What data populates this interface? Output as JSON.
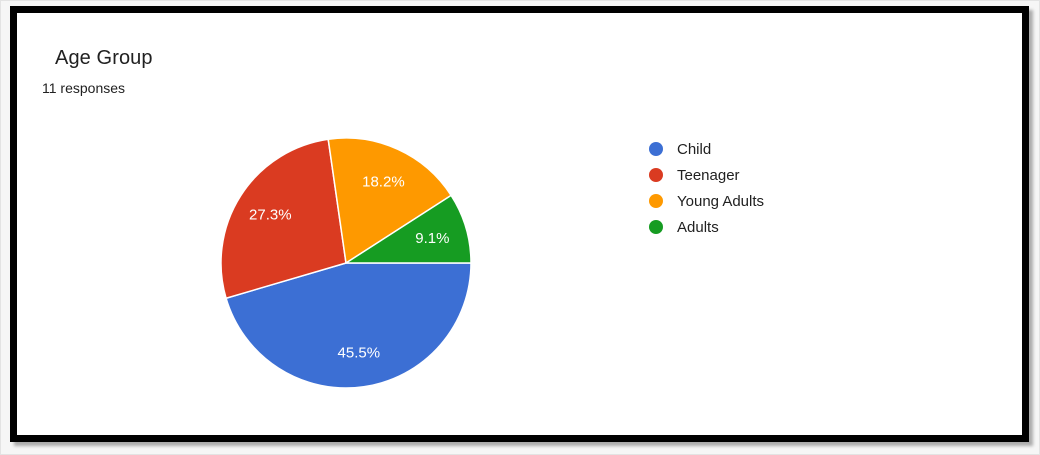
{
  "header": {
    "title": "Age Group",
    "subtitle": "11 responses"
  },
  "colors": {
    "frame_border": "#000000",
    "card_background": "#ffffff",
    "page_background": "#f6f6f6",
    "title_text": "#212121",
    "legend_text": "#212121",
    "slice_label_text": "#ffffff"
  },
  "chart_data": {
    "type": "pie",
    "title": "Age Group",
    "subtitle": "11 responses",
    "categories": [
      "Child",
      "Teenager",
      "Young Adults",
      "Adults"
    ],
    "values": [
      45.5,
      27.3,
      18.2,
      9.1
    ],
    "value_labels": [
      "45.5%",
      "27.3%",
      "18.2%",
      "9.1%"
    ],
    "colors": [
      "#3c6fd4",
      "#da3b21",
      "#fe9900",
      "#169c22"
    ],
    "start_angle_deg": 0,
    "direction": "clockwise",
    "legend_position": "right",
    "slice_border_color": "#ffffff",
    "label_color": "#ffffff",
    "label_radius_fraction": 0.72
  }
}
